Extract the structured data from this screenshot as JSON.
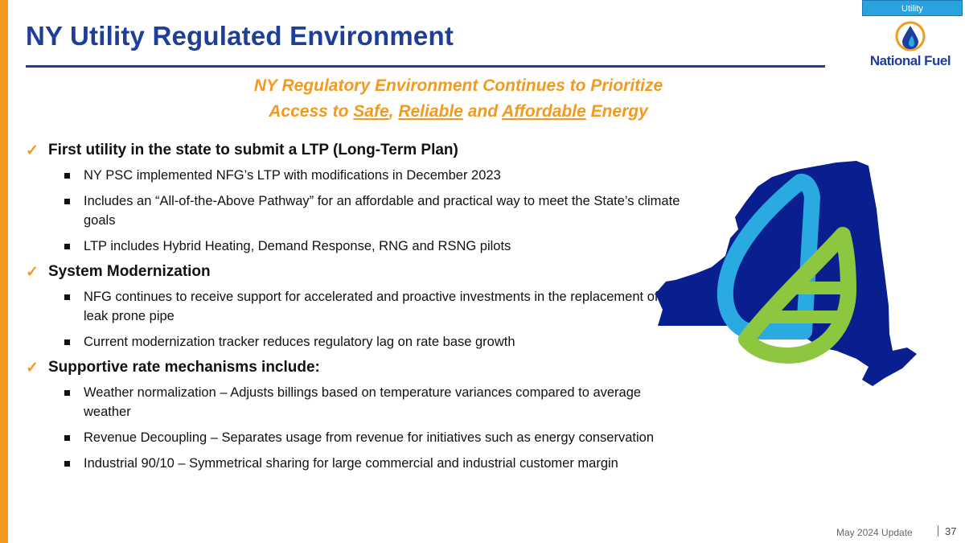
{
  "section_tab": "Utility",
  "title": "NY Utility Regulated Environment",
  "logo_text": "National Fuel",
  "subtitle": {
    "line1": "NY Regulatory Environment Continues to Prioritize",
    "line2_prefix": "Access to ",
    "safe": "Safe",
    "comma": ", ",
    "reliable": "Reliable",
    "and": " and ",
    "affordable": "Affordable",
    "suffix": " Energy"
  },
  "sections": [
    {
      "heading": "First utility in the state to submit a LTP (Long-Term Plan)",
      "bullets": [
        "NY PSC implemented NFG’s LTP with modifications in December 2023",
        "Includes an “All-of-the-Above Pathway” for an affordable and practical way to meet the State’s climate goals",
        "LTP includes Hybrid Heating, Demand Response, RNG and RSNG pilots"
      ]
    },
    {
      "heading": "System Modernization",
      "bullets": [
        "NFG continues to receive support for accelerated and proactive investments in the replacement of leak prone pipe",
        "Current modernization tracker reduces regulatory lag on rate base growth"
      ]
    },
    {
      "heading": "Supportive rate mechanisms include:",
      "bullets": [
        "Weather normalization – Adjusts billings based on temperature variances compared to average weather",
        "Revenue Decoupling – Separates usage from revenue for initiatives such as energy conservation",
        "Industrial 90/10 – Symmetrical sharing for large commercial and industrial customer margin"
      ]
    }
  ],
  "footer": {
    "date": "May 2024 Update",
    "page": "37"
  },
  "colors": {
    "brand_blue": "#1e3f99",
    "accent_orange": "#f29a1f",
    "map_navy": "#0a1f8f",
    "drop_blue": "#29abe2",
    "leaf_green": "#8dc63f"
  }
}
